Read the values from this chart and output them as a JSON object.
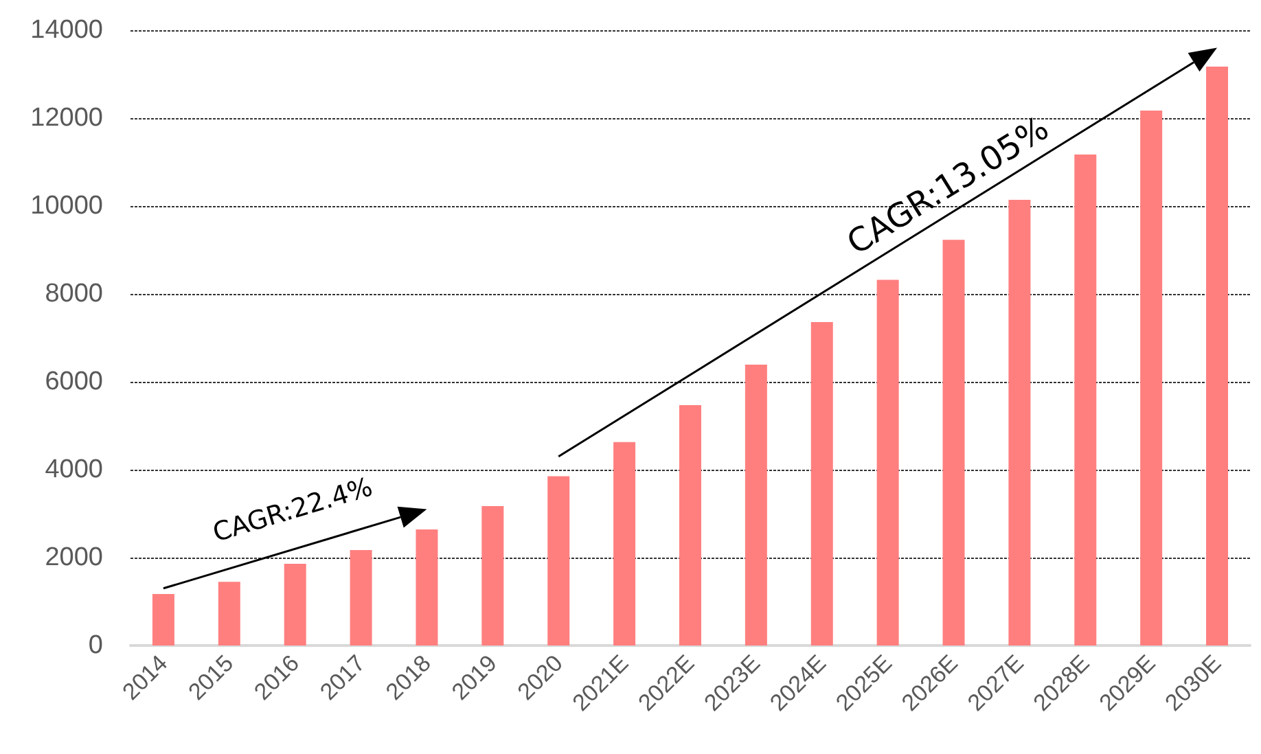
{
  "chart_data": {
    "type": "bar",
    "categories": [
      "2014",
      "2015",
      "2016",
      "2017",
      "2018",
      "2019",
      "2020",
      "2021E",
      "2022E",
      "2023E",
      "2024E",
      "2025E",
      "2026E",
      "2027E",
      "2028E",
      "2029E",
      "2030E"
    ],
    "values": [
      1170,
      1450,
      1860,
      2170,
      2640,
      3170,
      3850,
      4630,
      5470,
      6390,
      7360,
      8320,
      9230,
      10140,
      11170,
      12170,
      13170
    ],
    "color": "#ff7f7f",
    "ylim": [
      0,
      14000
    ],
    "yticks": [
      0,
      2000,
      4000,
      6000,
      8000,
      10000,
      12000,
      14000
    ],
    "grid": "y",
    "annotations": [
      "CAGR:22.4%",
      "CAGR:13.05%"
    ]
  }
}
